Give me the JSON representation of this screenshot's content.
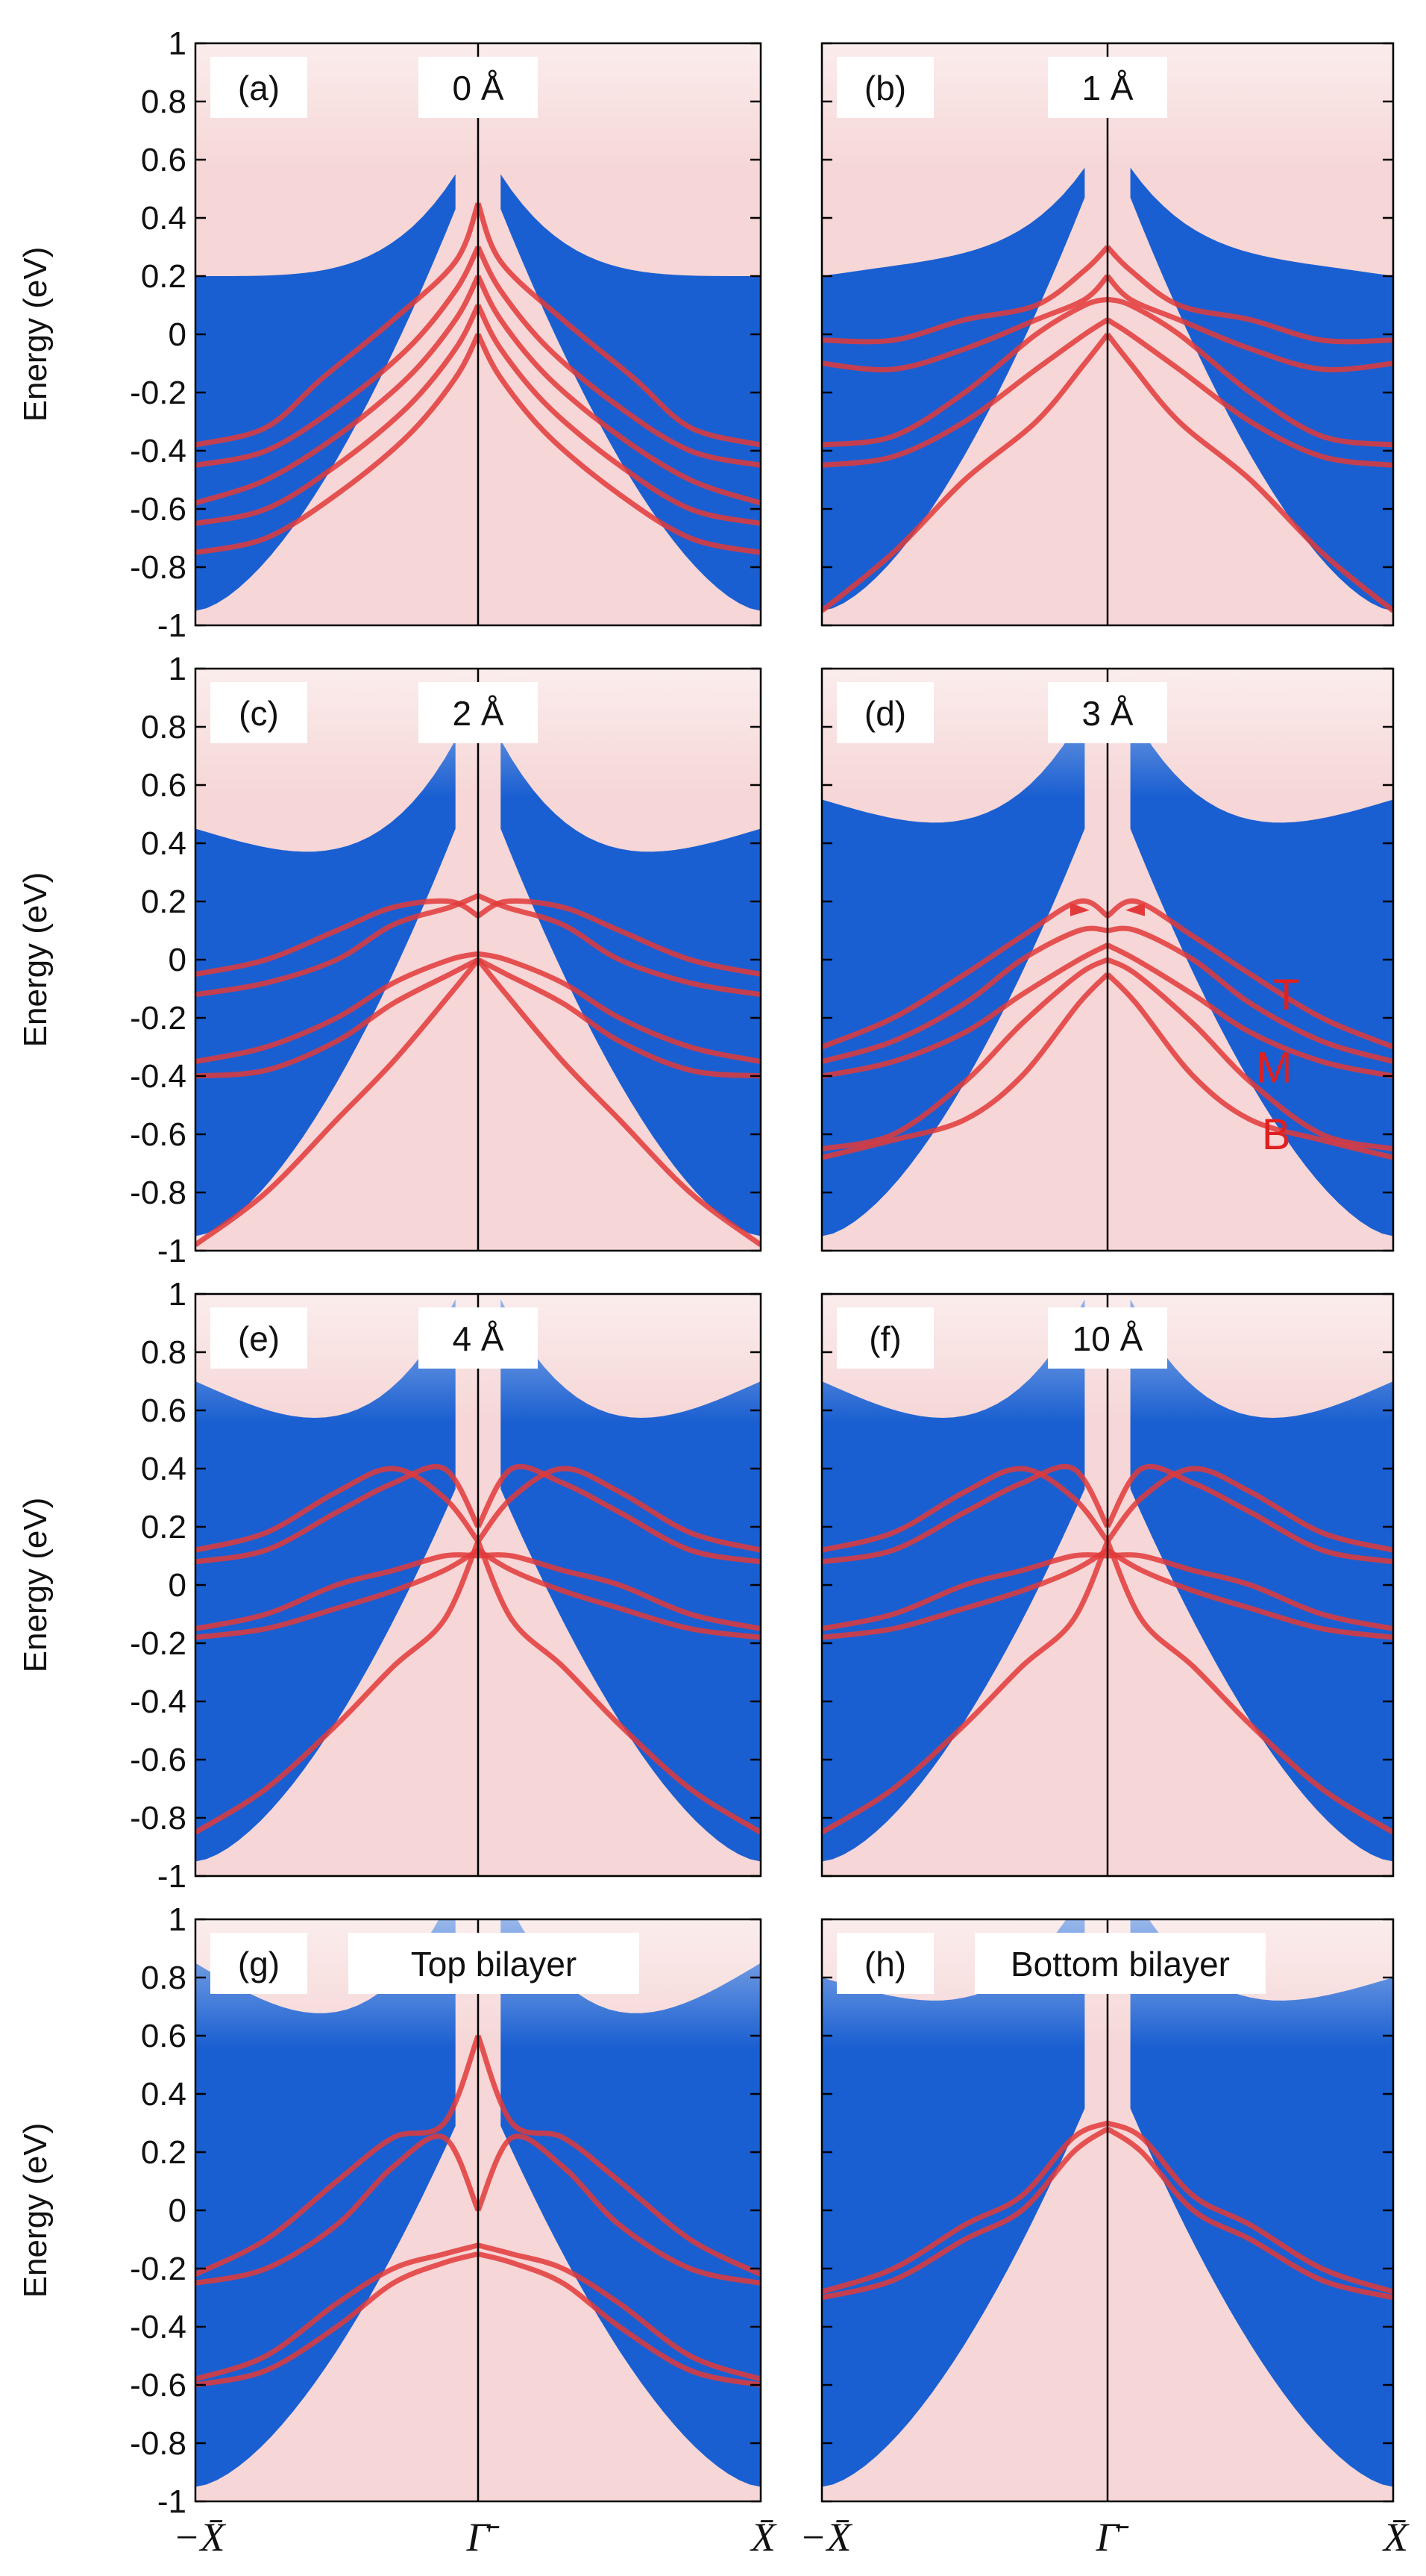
{
  "colors": {
    "bulk_blue": "#1a5fd1",
    "light_blue": "#dce7f7",
    "white": "#ffffff",
    "pink": "#f6d6d6",
    "red": "#e23a3a",
    "axis": "#000000"
  },
  "chart_data": [
    {
      "type": "heatmap",
      "panel": "(a)",
      "label": "0 Å",
      "ylabel": "Energy (eV)",
      "ylim": [
        -1,
        1
      ],
      "yticks": [
        "1",
        "0.8",
        "0.6",
        "0.4",
        "0.2",
        "0",
        "-0.2",
        "-0.4",
        "-0.6",
        "-0.8",
        "-1"
      ],
      "xticks": [
        "",
        "",
        ""
      ],
      "band_edges": [
        0.2,
        0.2,
        0.55
      ],
      "bands": [
        [
          [
            0,
            -0.38
          ],
          [
            0.25,
            -0.32
          ],
          [
            0.45,
            -0.15
          ],
          [
            0.7,
            0.05
          ],
          [
            0.92,
            0.25
          ],
          [
            1,
            0.45
          ]
        ],
        [
          [
            0,
            -0.45
          ],
          [
            0.25,
            -0.4
          ],
          [
            0.5,
            -0.25
          ],
          [
            0.75,
            -0.05
          ],
          [
            0.92,
            0.15
          ],
          [
            1,
            0.3
          ]
        ],
        [
          [
            0,
            -0.58
          ],
          [
            0.25,
            -0.5
          ],
          [
            0.5,
            -0.35
          ],
          [
            0.75,
            -0.15
          ],
          [
            0.92,
            0.05
          ],
          [
            1,
            0.2
          ]
        ],
        [
          [
            0,
            -0.65
          ],
          [
            0.25,
            -0.6
          ],
          [
            0.5,
            -0.45
          ],
          [
            0.75,
            -0.25
          ],
          [
            0.92,
            -0.05
          ],
          [
            1,
            0.1
          ]
        ],
        [
          [
            0,
            -0.75
          ],
          [
            0.25,
            -0.7
          ],
          [
            0.5,
            -0.55
          ],
          [
            0.75,
            -0.35
          ],
          [
            0.92,
            -0.15
          ],
          [
            1,
            0.0
          ]
        ]
      ]
    },
    {
      "type": "heatmap",
      "panel": "(b)",
      "label": "1 Å",
      "ylim": [
        -1,
        1
      ],
      "yticks": [
        "",
        "",
        "",
        "",
        "",
        "",
        "",
        "",
        "",
        "",
        ""
      ],
      "xticks": [
        "",
        "",
        ""
      ],
      "band_edges": [
        0.2,
        0.25,
        0.45
      ],
      "bands": [
        [
          [
            0,
            -0.02
          ],
          [
            0.25,
            -0.02
          ],
          [
            0.5,
            0.05
          ],
          [
            0.75,
            0.1
          ],
          [
            0.92,
            0.22
          ],
          [
            1,
            0.3
          ]
        ],
        [
          [
            0,
            -0.1
          ],
          [
            0.25,
            -0.12
          ],
          [
            0.5,
            -0.05
          ],
          [
            0.75,
            0.05
          ],
          [
            0.92,
            0.12
          ],
          [
            1,
            0.2
          ]
        ],
        [
          [
            0,
            -0.38
          ],
          [
            0.25,
            -0.35
          ],
          [
            0.5,
            -0.2
          ],
          [
            0.75,
            0.0
          ],
          [
            0.92,
            0.1
          ],
          [
            1,
            0.12
          ]
        ],
        [
          [
            0,
            -0.45
          ],
          [
            0.25,
            -0.42
          ],
          [
            0.5,
            -0.3
          ],
          [
            0.75,
            -0.12
          ],
          [
            0.92,
            0.0
          ],
          [
            1,
            0.05
          ]
        ],
        [
          [
            0,
            -0.95
          ],
          [
            0.25,
            -0.75
          ],
          [
            0.5,
            -0.5
          ],
          [
            0.75,
            -0.3
          ],
          [
            0.92,
            -0.1
          ],
          [
            1,
            0.0
          ]
        ]
      ]
    },
    {
      "type": "heatmap",
      "panel": "(c)",
      "label": "2 Å",
      "ylabel": "Energy (eV)",
      "ylim": [
        -1,
        1
      ],
      "yticks": [
        "1",
        "0.8",
        "0.6",
        "0.4",
        "0.2",
        "0",
        "-0.2",
        "-0.4",
        "-0.6",
        "-0.8",
        "-1"
      ],
      "xticks": [
        "",
        "",
        ""
      ],
      "band_edges": [
        0.45,
        0.35,
        0.5
      ],
      "bands": [
        [
          [
            0,
            -0.05
          ],
          [
            0.25,
            0.0
          ],
          [
            0.5,
            0.1
          ],
          [
            0.7,
            0.18
          ],
          [
            0.9,
            0.2
          ],
          [
            1,
            0.15
          ]
        ],
        [
          [
            0,
            -0.12
          ],
          [
            0.25,
            -0.08
          ],
          [
            0.5,
            0.0
          ],
          [
            0.7,
            0.12
          ],
          [
            0.9,
            0.18
          ],
          [
            1,
            0.22
          ]
        ],
        [
          [
            0,
            -0.35
          ],
          [
            0.25,
            -0.3
          ],
          [
            0.5,
            -0.2
          ],
          [
            0.7,
            -0.08
          ],
          [
            0.9,
            0.0
          ],
          [
            1,
            0.02
          ]
        ],
        [
          [
            0,
            -0.4
          ],
          [
            0.25,
            -0.38
          ],
          [
            0.5,
            -0.28
          ],
          [
            0.7,
            -0.15
          ],
          [
            0.9,
            -0.05
          ],
          [
            1,
            0.0
          ]
        ],
        [
          [
            0,
            -0.98
          ],
          [
            0.25,
            -0.8
          ],
          [
            0.5,
            -0.55
          ],
          [
            0.7,
            -0.35
          ],
          [
            0.9,
            -0.12
          ],
          [
            1,
            0.0
          ]
        ]
      ]
    },
    {
      "type": "heatmap",
      "panel": "(d)",
      "label": "3 Å",
      "ylim": [
        -1,
        1
      ],
      "yticks": [
        "",
        "",
        "",
        "",
        "",
        "",
        "",
        "",
        "",
        "",
        ""
      ],
      "xticks": [
        "",
        "",
        ""
      ],
      "band_edges": [
        0.55,
        0.45,
        0.5
      ],
      "annotations": [
        "T",
        "M",
        "B"
      ],
      "bands": [
        [
          [
            0,
            -0.3
          ],
          [
            0.25,
            -0.2
          ],
          [
            0.5,
            -0.05
          ],
          [
            0.7,
            0.08
          ],
          [
            0.9,
            0.2
          ],
          [
            1,
            0.15
          ]
        ],
        [
          [
            0,
            -0.35
          ],
          [
            0.25,
            -0.28
          ],
          [
            0.5,
            -0.15
          ],
          [
            0.7,
            0.0
          ],
          [
            0.9,
            0.1
          ],
          [
            1,
            0.1
          ]
        ],
        [
          [
            0,
            -0.4
          ],
          [
            0.25,
            -0.35
          ],
          [
            0.5,
            -0.25
          ],
          [
            0.7,
            -0.12
          ],
          [
            0.9,
            0.0
          ],
          [
            1,
            0.05
          ]
        ],
        [
          [
            0,
            -0.65
          ],
          [
            0.25,
            -0.6
          ],
          [
            0.5,
            -0.42
          ],
          [
            0.7,
            -0.22
          ],
          [
            0.9,
            -0.05
          ],
          [
            1,
            0.0
          ]
        ],
        [
          [
            0,
            -0.68
          ],
          [
            0.25,
            -0.62
          ],
          [
            0.5,
            -0.55
          ],
          [
            0.7,
            -0.4
          ],
          [
            0.9,
            -0.15
          ],
          [
            1,
            -0.05
          ]
        ]
      ]
    },
    {
      "type": "heatmap",
      "panel": "(e)",
      "label": "4 Å",
      "ylabel": "Energy (eV)",
      "ylim": [
        -1,
        1
      ],
      "yticks": [
        "1",
        "0.8",
        "0.6",
        "0.4",
        "0.2",
        "0",
        "-0.2",
        "-0.4",
        "-0.6",
        "-0.8",
        "-1"
      ],
      "xticks": [
        "",
        "",
        ""
      ],
      "band_edges": [
        0.7,
        0.55,
        0.8
      ],
      "bands": [
        [
          [
            0,
            0.12
          ],
          [
            0.25,
            0.18
          ],
          [
            0.5,
            0.32
          ],
          [
            0.7,
            0.4
          ],
          [
            0.88,
            0.3
          ],
          [
            1,
            0.15
          ]
        ],
        [
          [
            0,
            0.08
          ],
          [
            0.25,
            0.12
          ],
          [
            0.5,
            0.25
          ],
          [
            0.7,
            0.35
          ],
          [
            0.88,
            0.4
          ],
          [
            1,
            0.2
          ]
        ],
        [
          [
            0,
            -0.15
          ],
          [
            0.25,
            -0.1
          ],
          [
            0.5,
            0.0
          ],
          [
            0.7,
            0.05
          ],
          [
            0.88,
            0.1
          ],
          [
            1,
            0.1
          ]
        ],
        [
          [
            0,
            -0.18
          ],
          [
            0.25,
            -0.15
          ],
          [
            0.5,
            -0.08
          ],
          [
            0.7,
            -0.02
          ],
          [
            0.88,
            0.05
          ],
          [
            1,
            0.12
          ]
        ],
        [
          [
            0,
            -0.85
          ],
          [
            0.25,
            -0.7
          ],
          [
            0.5,
            -0.48
          ],
          [
            0.7,
            -0.28
          ],
          [
            0.88,
            -0.12
          ],
          [
            1,
            0.15
          ]
        ]
      ]
    },
    {
      "type": "heatmap",
      "panel": "(f)",
      "label": "10 Å",
      "ylim": [
        -1,
        1
      ],
      "yticks": [
        "",
        "",
        "",
        "",
        "",
        "",
        "",
        "",
        "",
        "",
        ""
      ],
      "xticks": [
        "",
        "",
        ""
      ],
      "band_edges": [
        0.7,
        0.55,
        0.8
      ],
      "bands": [
        [
          [
            0,
            0.12
          ],
          [
            0.25,
            0.18
          ],
          [
            0.5,
            0.32
          ],
          [
            0.7,
            0.4
          ],
          [
            0.88,
            0.3
          ],
          [
            1,
            0.15
          ]
        ],
        [
          [
            0,
            0.08
          ],
          [
            0.25,
            0.12
          ],
          [
            0.5,
            0.25
          ],
          [
            0.7,
            0.35
          ],
          [
            0.88,
            0.4
          ],
          [
            1,
            0.2
          ]
        ],
        [
          [
            0,
            -0.15
          ],
          [
            0.25,
            -0.1
          ],
          [
            0.5,
            0.0
          ],
          [
            0.7,
            0.05
          ],
          [
            0.88,
            0.1
          ],
          [
            1,
            0.1
          ]
        ],
        [
          [
            0,
            -0.18
          ],
          [
            0.25,
            -0.15
          ],
          [
            0.5,
            -0.08
          ],
          [
            0.7,
            -0.02
          ],
          [
            0.88,
            0.05
          ],
          [
            1,
            0.12
          ]
        ],
        [
          [
            0,
            -0.85
          ],
          [
            0.25,
            -0.7
          ],
          [
            0.5,
            -0.48
          ],
          [
            0.7,
            -0.28
          ],
          [
            0.88,
            -0.12
          ],
          [
            1,
            0.15
          ]
        ]
      ]
    },
    {
      "type": "heatmap",
      "panel": "(g)",
      "label": "Top bilayer",
      "ylabel": "Energy (eV)",
      "ylim": [
        -1,
        1
      ],
      "yticks": [
        "1",
        "0.8",
        "0.6",
        "0.4",
        "0.2",
        "0",
        "-0.2",
        "-0.4",
        "-0.6",
        "-0.8",
        "-1"
      ],
      "xticks": [
        "−X̄",
        "Γ̄",
        "X̄"
      ],
      "band_edges": [
        0.85,
        0.65,
        0.9
      ],
      "bands": [
        [
          [
            0,
            -0.22
          ],
          [
            0.25,
            -0.1
          ],
          [
            0.5,
            0.1
          ],
          [
            0.7,
            0.25
          ],
          [
            0.88,
            0.3
          ],
          [
            1,
            0.6
          ]
        ],
        [
          [
            0,
            -0.25
          ],
          [
            0.25,
            -0.2
          ],
          [
            0.5,
            -0.05
          ],
          [
            0.7,
            0.15
          ],
          [
            0.88,
            0.25
          ],
          [
            1,
            0.0
          ]
        ],
        [
          [
            0,
            -0.58
          ],
          [
            0.25,
            -0.5
          ],
          [
            0.5,
            -0.32
          ],
          [
            0.7,
            -0.2
          ],
          [
            0.88,
            -0.15
          ],
          [
            1,
            -0.12
          ]
        ],
        [
          [
            0,
            -0.6
          ],
          [
            0.25,
            -0.55
          ],
          [
            0.5,
            -0.4
          ],
          [
            0.7,
            -0.25
          ],
          [
            0.88,
            -0.18
          ],
          [
            1,
            -0.15
          ]
        ]
      ]
    },
    {
      "type": "heatmap",
      "panel": "(h)",
      "label": "Bottom bilayer",
      "ylim": [
        -1,
        1
      ],
      "yticks": [
        "",
        "",
        "",
        "",
        "",
        "",
        "",
        "",
        "",
        "",
        ""
      ],
      "xticks": [
        "−X̄",
        "Γ̄",
        "X̄"
      ],
      "band_edges": [
        0.8,
        0.7,
        0.75
      ],
      "bands": [
        [
          [
            0,
            -0.28
          ],
          [
            0.25,
            -0.2
          ],
          [
            0.5,
            -0.05
          ],
          [
            0.7,
            0.05
          ],
          [
            0.88,
            0.25
          ],
          [
            1,
            0.3
          ]
        ],
        [
          [
            0,
            -0.3
          ],
          [
            0.25,
            -0.24
          ],
          [
            0.5,
            -0.1
          ],
          [
            0.7,
            0.0
          ],
          [
            0.88,
            0.2
          ],
          [
            1,
            0.28
          ]
        ]
      ]
    }
  ]
}
